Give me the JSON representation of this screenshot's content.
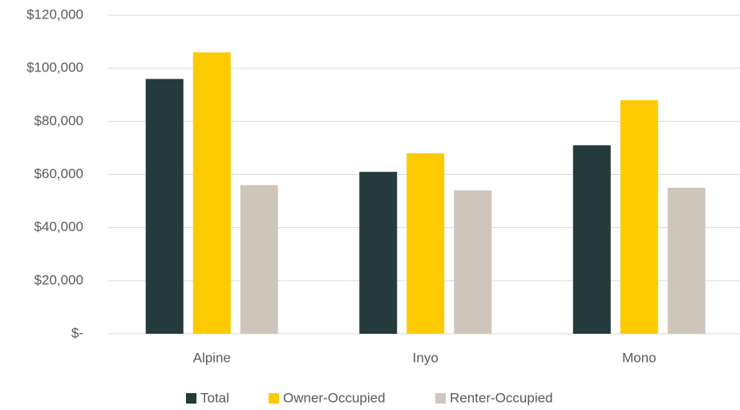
{
  "chart_data": {
    "type": "bar",
    "categories": [
      "Alpine",
      "Inyo",
      "Mono"
    ],
    "series": [
      {
        "name": "Total",
        "color": "#253a3d",
        "values": [
          96000,
          61000,
          71000
        ]
      },
      {
        "name": "Owner-Occupied",
        "color": "#fdca00",
        "values": [
          106000,
          68000,
          88000
        ]
      },
      {
        "name": "Renter-Occupied",
        "color": "#d0c5bb",
        "values": [
          56000,
          54000,
          55000
        ]
      }
    ],
    "ylim": [
      0,
      120000
    ],
    "yticks": [
      {
        "value": 0,
        "label": "$-"
      },
      {
        "value": 20000,
        "label": "$20,000"
      },
      {
        "value": 40000,
        "label": "$40,000"
      },
      {
        "value": 60000,
        "label": "$60,000"
      },
      {
        "value": 80000,
        "label": "$80,000"
      },
      {
        "value": 100000,
        "label": "$100,000"
      },
      {
        "value": 120000,
        "label": "$120,000"
      }
    ],
    "grid": true,
    "legend": "bottom"
  }
}
